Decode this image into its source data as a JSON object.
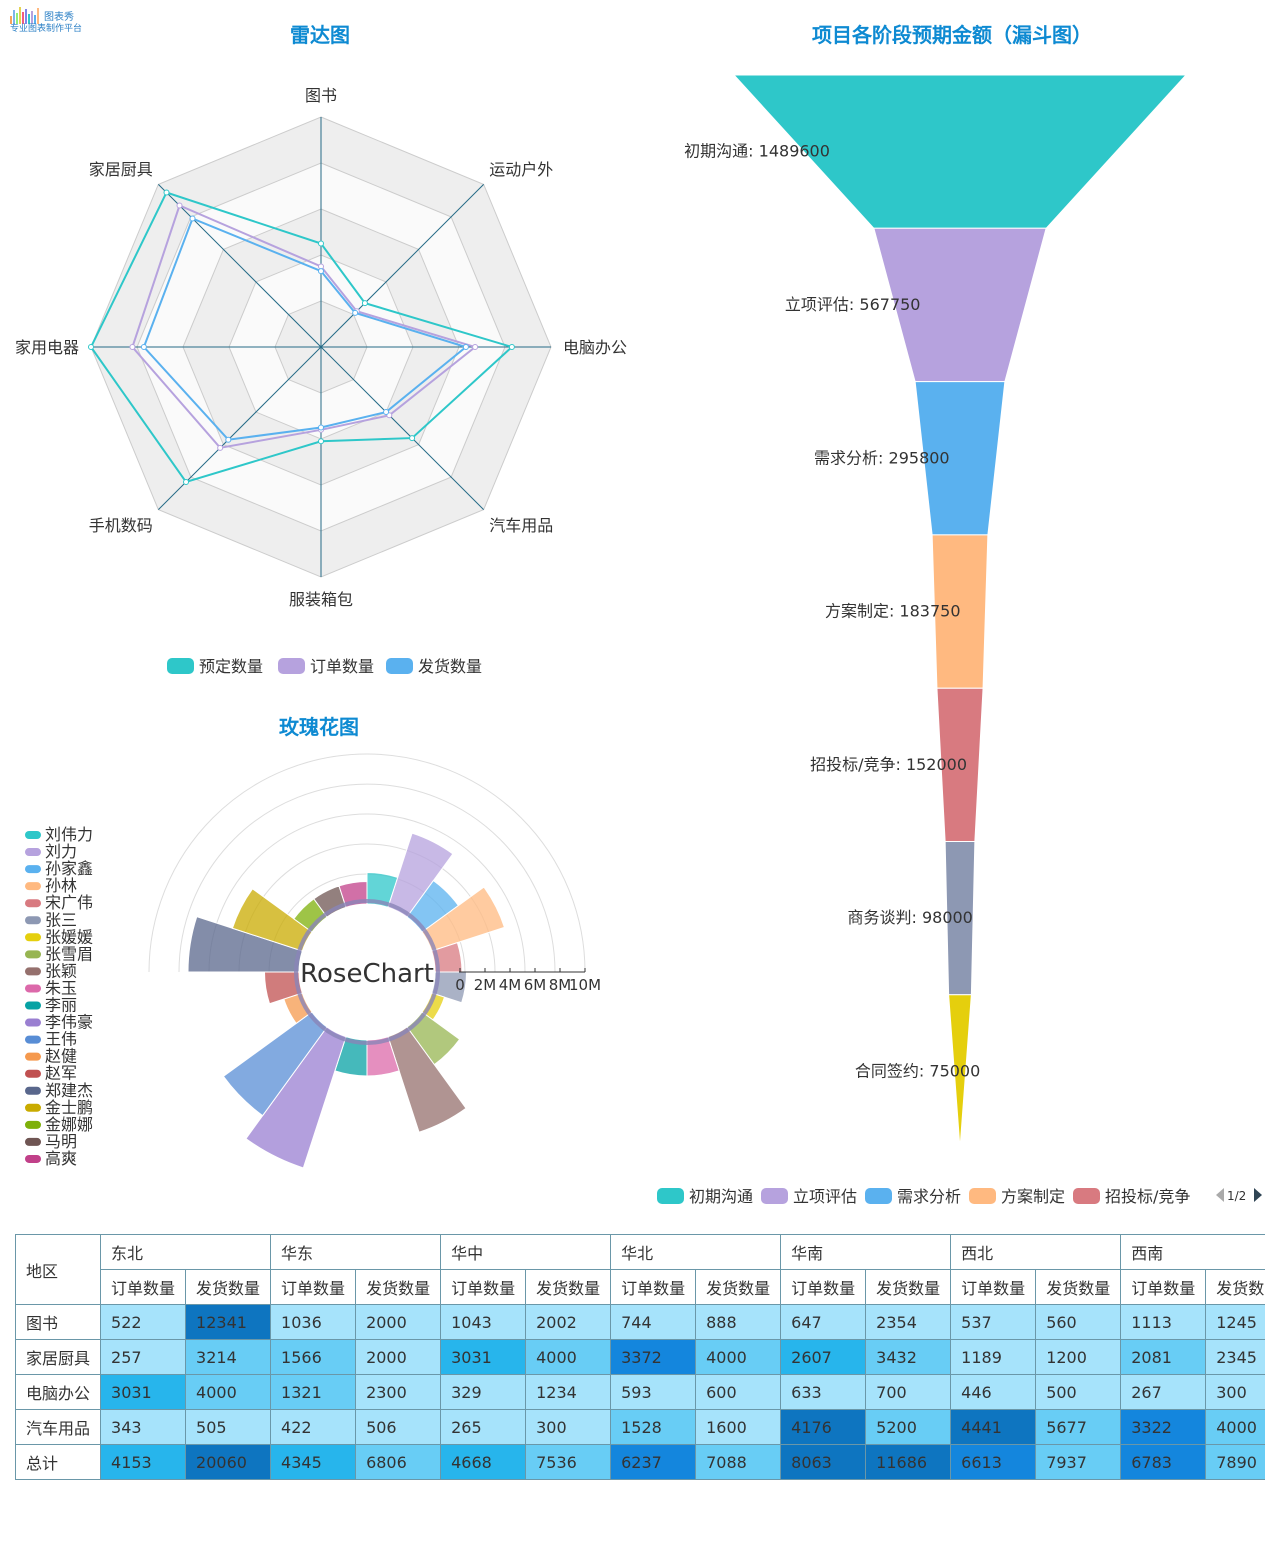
{
  "brand": {
    "name": "图表秀",
    "tagline": "专业图表制作平台"
  },
  "colors": [
    "#2ec7c9",
    "#b6a2de",
    "#5ab1ef",
    "#ffb980",
    "#d87a80",
    "#8d98b3",
    "#e5cf0d",
    "#97b552",
    "#95706d",
    "#dc69aa",
    "#07a2a4",
    "#9a7fd1",
    "#588dd5",
    "#f5994e",
    "#c05050",
    "#59678c",
    "#c9ab00",
    "#7eb00a",
    "#6f5553",
    "#c14089"
  ],
  "radar": {
    "title": "雷达图",
    "indicators": [
      "图书",
      "运动户外",
      "电脑办公",
      "汽车用品",
      "服装箱包",
      "手机数码",
      "家用电器",
      "家居厨具"
    ],
    "legend": [
      "预定数量",
      "订单数量",
      "发货数量"
    ]
  },
  "funnel": {
    "title": "项目各阶段预期金额（漏斗图）",
    "legend_visible": [
      "初期沟通",
      "立项评估",
      "需求分析",
      "方案制定",
      "招投标/竞争"
    ],
    "legend_page": "1/2"
  },
  "rose": {
    "title": "玫瑰花图",
    "center_label": "RoseChart",
    "axis_ticks": [
      "0",
      "2M",
      "4M",
      "6M",
      "8M",
      "10M"
    ]
  },
  "table": {
    "corner": "地区",
    "regions": [
      "东北",
      "华东",
      "华中",
      "华北",
      "华南",
      "西北",
      "西南"
    ],
    "sub_headers": [
      "订单数量",
      "发货数量"
    ],
    "rows": [
      {
        "name": "图书",
        "values": [
          "522",
          "12341",
          "1036",
          "2000",
          "1043",
          "2002",
          "744",
          "888",
          "647",
          "2354",
          "537",
          "560",
          "1113",
          "1245"
        ]
      },
      {
        "name": "家居厨具",
        "values": [
          "257",
          "3214",
          "1566",
          "2000",
          "3031",
          "4000",
          "3372",
          "4000",
          "2607",
          "3432",
          "1189",
          "1200",
          "2081",
          "2345"
        ]
      },
      {
        "name": "电脑办公",
        "values": [
          "3031",
          "4000",
          "1321",
          "2300",
          "329",
          "1234",
          "593",
          "600",
          "633",
          "700",
          "446",
          "500",
          "267",
          "300"
        ]
      },
      {
        "name": "汽车用品",
        "values": [
          "343",
          "505",
          "422",
          "506",
          "265",
          "300",
          "1528",
          "1600",
          "4176",
          "5200",
          "4441",
          "5677",
          "3322",
          "4000"
        ]
      },
      {
        "name": "总计",
        "values": [
          "4153",
          "20060",
          "4345",
          "6806",
          "4668",
          "7536",
          "6237",
          "7088",
          "8063",
          "11686",
          "6613",
          "7937",
          "6783",
          "7890"
        ]
      }
    ],
    "cell_shades": [
      [
        "#a6e3fb",
        "#0e75c0",
        "#a6e3fb",
        "#a6e3fb",
        "#a6e3fb",
        "#a6e3fb",
        "#a6e3fb",
        "#a6e3fb",
        "#a6e3fb",
        "#a6e3fb",
        "#a6e3fb",
        "#a6e3fb",
        "#a6e3fb",
        "#a6e3fb"
      ],
      [
        "#a6e3fb",
        "#68cdf5",
        "#68cdf5",
        "#a6e3fb",
        "#27b5ec",
        "#68cdf5",
        "#1486dd",
        "#68cdf5",
        "#27b5ec",
        "#68cdf5",
        "#a6e3fb",
        "#a6e3fb",
        "#68cdf5",
        "#a6e3fb"
      ],
      [
        "#27b5ec",
        "#68cdf5",
        "#68cdf5",
        "#a6e3fb",
        "#a6e3fb",
        "#a6e3fb",
        "#a6e3fb",
        "#a6e3fb",
        "#a6e3fb",
        "#a6e3fb",
        "#a6e3fb",
        "#a6e3fb",
        "#a6e3fb",
        "#a6e3fb"
      ],
      [
        "#a6e3fb",
        "#a6e3fb",
        "#a6e3fb",
        "#a6e3fb",
        "#a6e3fb",
        "#a6e3fb",
        "#68cdf5",
        "#a6e3fb",
        "#0e75c0",
        "#68cdf5",
        "#0e75c0",
        "#68cdf5",
        "#1486dd",
        "#68cdf5"
      ],
      [
        "#27b5ec",
        "#0e75c0",
        "#27b5ec",
        "#68cdf5",
        "#27b5ec",
        "#68cdf5",
        "#1486dd",
        "#68cdf5",
        "#0e75c0",
        "#0e75c0",
        "#1486dd",
        "#68cdf5",
        "#1486dd",
        "#68cdf5"
      ]
    ]
  },
  "chart_data": [
    {
      "type": "radar",
      "title": "雷达图",
      "indicators": [
        "图书",
        "运动户外",
        "电脑办公",
        "汽车用品",
        "服装箱包",
        "手机数码",
        "家用电器",
        "家居厨具"
      ],
      "max": 100,
      "series": [
        {
          "name": "预定数量",
          "values": [
            45,
            27,
            83,
            56,
            41,
            83,
            100,
            95
          ]
        },
        {
          "name": "订单数量",
          "values": [
            35,
            22,
            67,
            42,
            36,
            62,
            82,
            87
          ]
        },
        {
          "name": "发货数量",
          "values": [
            33,
            21,
            63,
            40,
            35,
            57,
            77,
            79
          ]
        }
      ]
    },
    {
      "type": "funnel",
      "title": "项目各阶段预期金额（漏斗图）",
      "categories": [
        "初期沟通",
        "立项评估",
        "需求分析",
        "方案制定",
        "招投标/竞争",
        "商务谈判",
        "合同签约"
      ],
      "values": [
        1489600,
        567750,
        295800,
        183750,
        152000,
        98000,
        75000
      ]
    },
    {
      "type": "pie",
      "subtype": "rose",
      "title": "玫瑰花图",
      "axis_max": 10000000,
      "categories": [
        "刘伟力",
        "刘力",
        "孙家鑫",
        "孙林",
        "宋广伟",
        "张三",
        "张媛媛",
        "张雪眉",
        "张颖",
        "朱玉",
        "李丽",
        "李伟豪",
        "王伟",
        "赵健",
        "赵军",
        "郑建杰",
        "金士鹏",
        "金娜娜",
        "马明",
        "高爽"
      ],
      "values": [
        2100000,
        5200000,
        3000000,
        5100000,
        1800000,
        2100000,
        900000,
        3100000,
        6700000,
        2400000,
        2400000,
        9200000,
        7300000,
        1300000,
        2300000,
        7400000,
        4900000,
        1500000,
        1500000,
        1500000
      ]
    }
  ]
}
